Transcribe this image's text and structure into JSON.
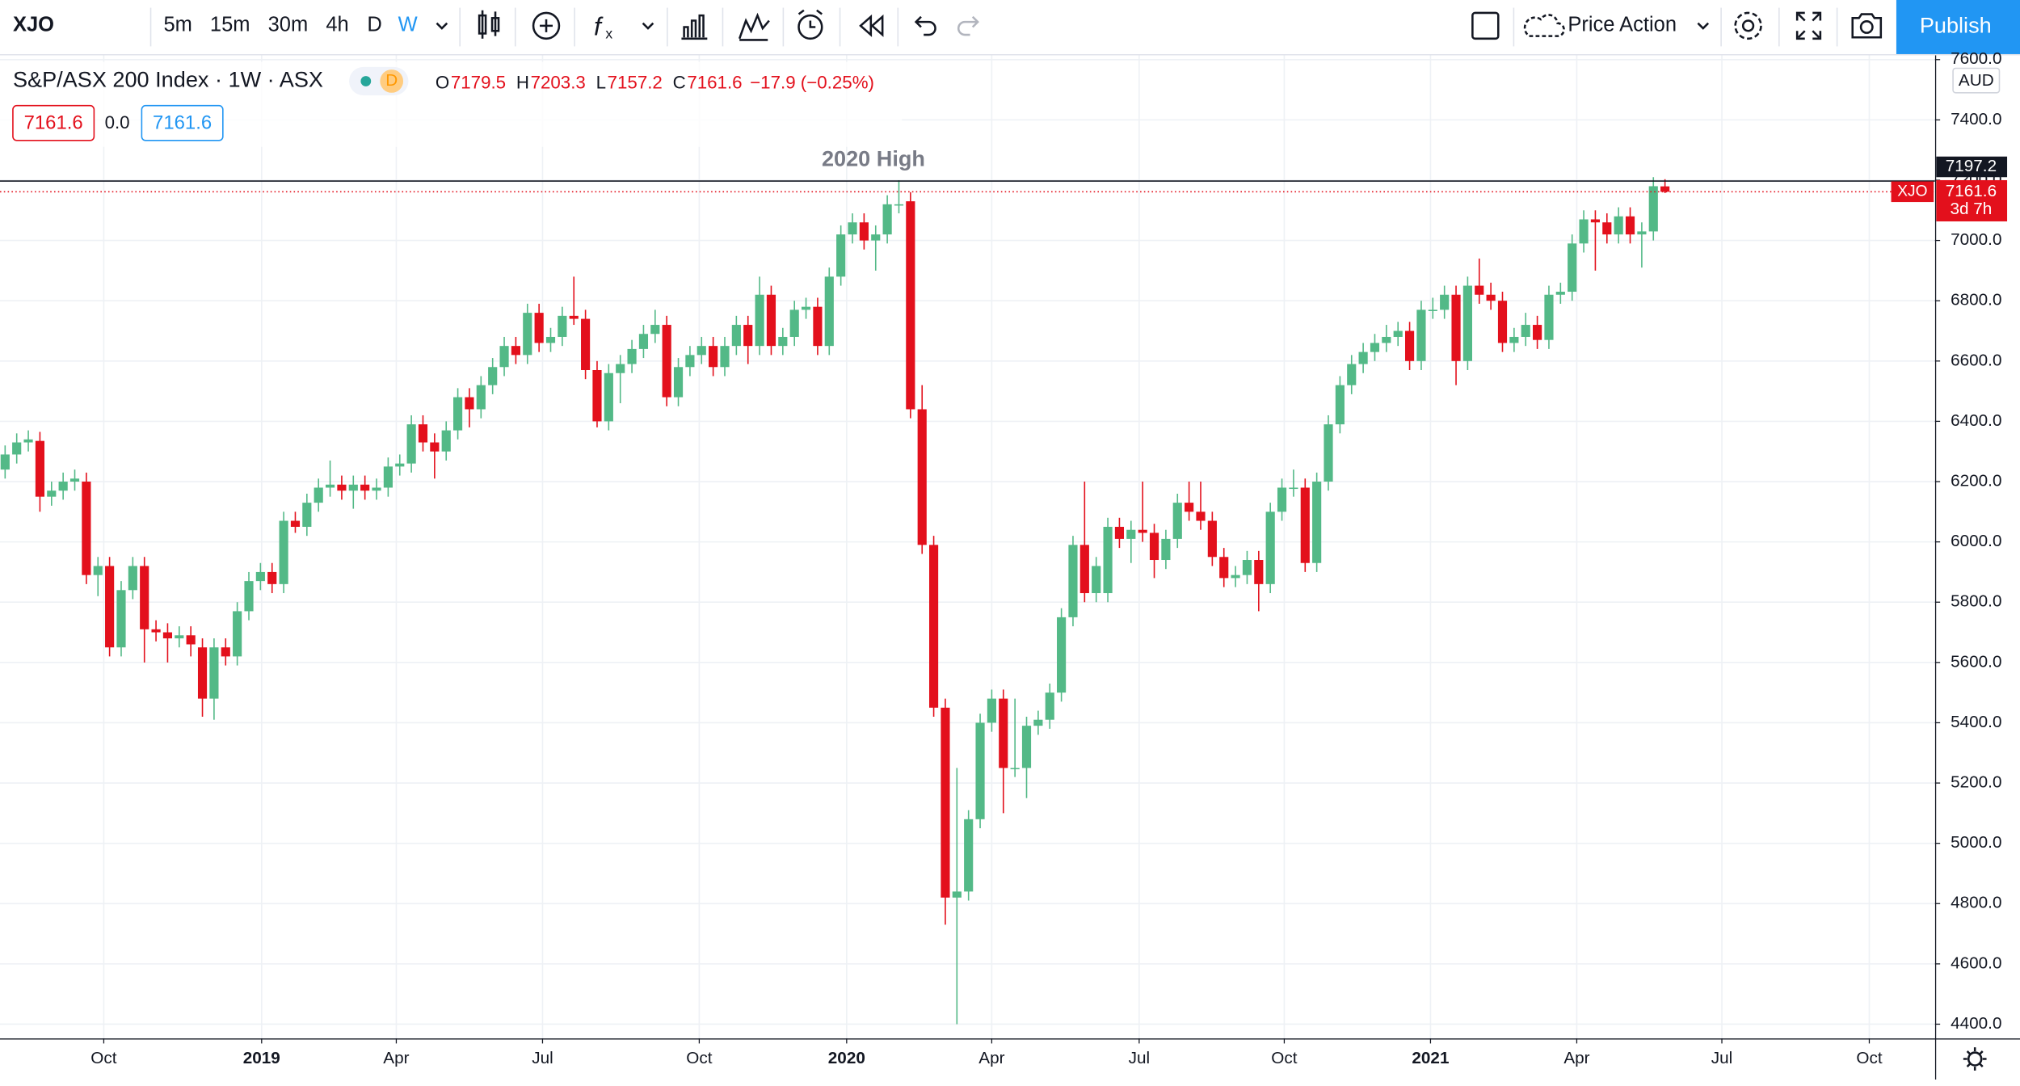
{
  "toolbar": {
    "symbol": "XJO",
    "intervals": [
      "5m",
      "15m",
      "30m",
      "4h",
      "D",
      "W"
    ],
    "active_interval": "W",
    "layout_name": "Price Action",
    "publish": "Publish"
  },
  "legend": {
    "title": "S&P/ASX 200 Index · 1W · ASX",
    "badge": "D",
    "ohlc_letters": [
      "O",
      "H",
      "L",
      "C"
    ],
    "change": "−17.9 (−0.25%)",
    "spread": "0.0"
  },
  "chart_data": {
    "type": "candlestick",
    "currency": "AUD",
    "countdown": "3d 7h",
    "up_color": "#53b987",
    "down_color": "#e3101c",
    "annotation": {
      "text": "2020 High",
      "value": 7197.2
    },
    "xlim": [
      -0.44,
      166.26
    ],
    "ylim": [
      4353,
      7614
    ],
    "yticks": [
      {
        "value": 4400,
        "label": "4400.0"
      },
      {
        "value": 4600,
        "label": "4600.0"
      },
      {
        "value": 4800,
        "label": "4800.0"
      },
      {
        "value": 5000,
        "label": "5000.0"
      },
      {
        "value": 5200,
        "label": "5200.0"
      },
      {
        "value": 5400,
        "label": "5400.0"
      },
      {
        "value": 5600,
        "label": "5600.0"
      },
      {
        "value": 5800,
        "label": "5800.0"
      },
      {
        "value": 6000,
        "label": "6000.0"
      },
      {
        "value": 6200,
        "label": "6200.0"
      },
      {
        "value": 6400,
        "label": "6400.0"
      },
      {
        "value": 6600,
        "label": "6600.0"
      },
      {
        "value": 6800,
        "label": "6800.0"
      },
      {
        "value": 7000,
        "label": "7000.0"
      },
      {
        "value": 7200,
        "label": "7200.0"
      },
      {
        "value": 7400,
        "label": "7400.0"
      },
      {
        "value": 7600,
        "label": "7600.0"
      }
    ],
    "xticks": [
      {
        "value": 8.5,
        "label": "Oct"
      },
      {
        "value": 22.1,
        "label": "2019"
      },
      {
        "value": 33.7,
        "label": "Apr"
      },
      {
        "value": 46.3,
        "label": "Jul"
      },
      {
        "value": 59.8,
        "label": "Oct"
      },
      {
        "value": 72.5,
        "label": "2020"
      },
      {
        "value": 85.0,
        "label": "Apr"
      },
      {
        "value": 97.7,
        "label": "Jul"
      },
      {
        "value": 110.2,
        "label": "Oct"
      },
      {
        "value": 122.8,
        "label": "2021"
      },
      {
        "value": 135.4,
        "label": "Apr"
      },
      {
        "value": 147.9,
        "label": "Jul"
      },
      {
        "value": 160.6,
        "label": "Oct"
      }
    ],
    "grid": true,
    "x": [
      0,
      1,
      2,
      3,
      4,
      5,
      6,
      7,
      8,
      9,
      10,
      11,
      12,
      13,
      14,
      15,
      16,
      17,
      18,
      19,
      20,
      21,
      22,
      23,
      24,
      25,
      26,
      27,
      28,
      29,
      30,
      31,
      32,
      33,
      34,
      35,
      36,
      37,
      38,
      39,
      40,
      41,
      42,
      43,
      44,
      45,
      46,
      47,
      48,
      49,
      50,
      51,
      52,
      53,
      54,
      55,
      56,
      57,
      58,
      59,
      60,
      61,
      62,
      63,
      64,
      65,
      66,
      67,
      68,
      69,
      70,
      71,
      72,
      73,
      74,
      75,
      76,
      77,
      78,
      79,
      80,
      81,
      82,
      83,
      84,
      85,
      86,
      87,
      88,
      89,
      90,
      91,
      92,
      93,
      94,
      95,
      96,
      97,
      98,
      99,
      100,
      101,
      102,
      103,
      104,
      105,
      106,
      107,
      108,
      109,
      110,
      111,
      112,
      113,
      114,
      115,
      116,
      117,
      118,
      119,
      120,
      121,
      122,
      123,
      124,
      125,
      126,
      127,
      128,
      129,
      130,
      131,
      132,
      133,
      134,
      135,
      136,
      137,
      138,
      139,
      140,
      141,
      142,
      143
    ],
    "candles": [
      [
        6240,
        6320,
        6210,
        6290
      ],
      [
        6290,
        6360,
        6260,
        6330
      ],
      [
        6330,
        6370,
        6300,
        6340
      ],
      [
        6335,
        6365,
        6100,
        6150
      ],
      [
        6150,
        6200,
        6120,
        6170
      ],
      [
        6170,
        6230,
        6140,
        6200
      ],
      [
        6200,
        6240,
        6170,
        6210
      ],
      [
        6200,
        6230,
        5860,
        5890
      ],
      [
        5890,
        5950,
        5820,
        5920
      ],
      [
        5920,
        5950,
        5620,
        5650
      ],
      [
        5650,
        5870,
        5620,
        5840
      ],
      [
        5840,
        5950,
        5810,
        5920
      ],
      [
        5920,
        5950,
        5600,
        5710
      ],
      [
        5710,
        5740,
        5670,
        5700
      ],
      [
        5700,
        5730,
        5600,
        5680
      ],
      [
        5680,
        5720,
        5650,
        5690
      ],
      [
        5690,
        5720,
        5620,
        5660
      ],
      [
        5650,
        5680,
        5420,
        5480
      ],
      [
        5480,
        5680,
        5410,
        5650
      ],
      [
        5650,
        5680,
        5590,
        5620
      ],
      [
        5620,
        5800,
        5590,
        5770
      ],
      [
        5770,
        5900,
        5740,
        5870
      ],
      [
        5870,
        5930,
        5840,
        5900
      ],
      [
        5900,
        5930,
        5830,
        5860
      ],
      [
        5860,
        6100,
        5830,
        6070
      ],
      [
        6070,
        6100,
        6030,
        6050
      ],
      [
        6050,
        6160,
        6020,
        6130
      ],
      [
        6130,
        6210,
        6100,
        6180
      ],
      [
        6180,
        6270,
        6150,
        6190
      ],
      [
        6190,
        6220,
        6140,
        6170
      ],
      [
        6170,
        6220,
        6110,
        6190
      ],
      [
        6190,
        6220,
        6140,
        6170
      ],
      [
        6170,
        6210,
        6140,
        6180
      ],
      [
        6180,
        6280,
        6150,
        6250
      ],
      [
        6250,
        6290,
        6220,
        6260
      ],
      [
        6260,
        6420,
        6230,
        6390
      ],
      [
        6390,
        6420,
        6300,
        6330
      ],
      [
        6330,
        6360,
        6210,
        6300
      ],
      [
        6300,
        6400,
        6270,
        6370
      ],
      [
        6370,
        6510,
        6340,
        6480
      ],
      [
        6480,
        6510,
        6380,
        6440
      ],
      [
        6440,
        6550,
        6410,
        6520
      ],
      [
        6520,
        6610,
        6490,
        6580
      ],
      [
        6580,
        6680,
        6550,
        6650
      ],
      [
        6650,
        6680,
        6590,
        6620
      ],
      [
        6620,
        6790,
        6590,
        6760
      ],
      [
        6760,
        6790,
        6630,
        6660
      ],
      [
        6660,
        6710,
        6630,
        6680
      ],
      [
        6680,
        6780,
        6650,
        6750
      ],
      [
        6750,
        6880,
        6720,
        6740
      ],
      [
        6740,
        6770,
        6540,
        6570
      ],
      [
        6570,
        6600,
        6380,
        6400
      ],
      [
        6400,
        6590,
        6370,
        6560
      ],
      [
        6560,
        6620,
        6460,
        6590
      ],
      [
        6590,
        6670,
        6560,
        6640
      ],
      [
        6640,
        6720,
        6610,
        6690
      ],
      [
        6690,
        6770,
        6660,
        6720
      ],
      [
        6720,
        6750,
        6450,
        6480
      ],
      [
        6480,
        6610,
        6450,
        6580
      ],
      [
        6580,
        6650,
        6550,
        6620
      ],
      [
        6620,
        6680,
        6590,
        6650
      ],
      [
        6650,
        6680,
        6550,
        6580
      ],
      [
        6580,
        6680,
        6550,
        6650
      ],
      [
        6650,
        6750,
        6620,
        6720
      ],
      [
        6720,
        6750,
        6590,
        6650
      ],
      [
        6650,
        6880,
        6620,
        6820
      ],
      [
        6820,
        6850,
        6620,
        6650
      ],
      [
        6650,
        6710,
        6620,
        6680
      ],
      [
        6680,
        6800,
        6650,
        6770
      ],
      [
        6770,
        6810,
        6740,
        6780
      ],
      [
        6780,
        6810,
        6620,
        6650
      ],
      [
        6650,
        6910,
        6620,
        6880
      ],
      [
        6880,
        7050,
        6850,
        7020
      ],
      [
        7020,
        7090,
        6990,
        7060
      ],
      [
        7060,
        7090,
        6970,
        7000
      ],
      [
        7000,
        7050,
        6900,
        7020
      ],
      [
        7020,
        7150,
        6990,
        7120
      ],
      [
        7120,
        7200,
        7090,
        7120
      ],
      [
        7130,
        7160,
        6410,
        6440
      ],
      [
        6440,
        6520,
        5960,
        5990
      ],
      [
        5990,
        6020,
        5420,
        5450
      ],
      [
        5450,
        5480,
        4730,
        4820
      ],
      [
        4820,
        5250,
        4400,
        4840
      ],
      [
        4840,
        5110,
        4810,
        5080
      ],
      [
        5080,
        5430,
        5050,
        5400
      ],
      [
        5400,
        5510,
        5370,
        5480
      ],
      [
        5480,
        5510,
        5100,
        5250
      ],
      [
        5250,
        5480,
        5220,
        5250
      ],
      [
        5250,
        5420,
        5150,
        5390
      ],
      [
        5390,
        5440,
        5360,
        5410
      ],
      [
        5410,
        5530,
        5380,
        5500
      ],
      [
        5500,
        5780,
        5470,
        5750
      ],
      [
        5750,
        6020,
        5720,
        5990
      ],
      [
        5990,
        6200,
        5800,
        5830
      ],
      [
        5830,
        5950,
        5800,
        5920
      ],
      [
        5830,
        6080,
        5800,
        6050
      ],
      [
        6050,
        6080,
        5980,
        6010
      ],
      [
        6010,
        6070,
        5930,
        6040
      ],
      [
        6040,
        6200,
        6000,
        6030
      ],
      [
        6030,
        6060,
        5880,
        5940
      ],
      [
        5940,
        6040,
        5910,
        6010
      ],
      [
        6010,
        6160,
        5980,
        6130
      ],
      [
        6130,
        6200,
        6070,
        6100
      ],
      [
        6100,
        6200,
        6040,
        6070
      ],
      [
        6070,
        6100,
        5920,
        5950
      ],
      [
        5950,
        5980,
        5850,
        5880
      ],
      [
        5880,
        5920,
        5850,
        5890
      ],
      [
        5890,
        5970,
        5860,
        5940
      ],
      [
        5940,
        5970,
        5770,
        5860
      ],
      [
        5860,
        6130,
        5830,
        6100
      ],
      [
        6100,
        6210,
        6070,
        6180
      ],
      [
        6180,
        6240,
        6150,
        6180
      ],
      [
        6180,
        6210,
        5900,
        5930
      ],
      [
        5930,
        6230,
        5900,
        6200
      ],
      [
        6200,
        6420,
        6170,
        6390
      ],
      [
        6390,
        6550,
        6360,
        6520
      ],
      [
        6520,
        6620,
        6490,
        6590
      ],
      [
        6590,
        6660,
        6560,
        6630
      ],
      [
        6630,
        6690,
        6600,
        6660
      ],
      [
        6660,
        6720,
        6630,
        6680
      ],
      [
        6680,
        6730,
        6650,
        6700
      ],
      [
        6700,
        6730,
        6570,
        6600
      ],
      [
        6600,
        6800,
        6570,
        6770
      ],
      [
        6770,
        6810,
        6740,
        6770
      ],
      [
        6770,
        6850,
        6740,
        6820
      ],
      [
        6820,
        6850,
        6520,
        6600
      ],
      [
        6600,
        6880,
        6570,
        6850
      ],
      [
        6850,
        6940,
        6790,
        6820
      ],
      [
        6820,
        6860,
        6770,
        6800
      ],
      [
        6800,
        6830,
        6630,
        6660
      ],
      [
        6660,
        6710,
        6630,
        6680
      ],
      [
        6680,
        6760,
        6650,
        6720
      ],
      [
        6720,
        6750,
        6640,
        6670
      ],
      [
        6670,
        6850,
        6640,
        6820
      ],
      [
        6820,
        6860,
        6790,
        6830
      ],
      [
        6830,
        7020,
        6800,
        6990
      ],
      [
        6990,
        7100,
        6960,
        7070
      ],
      [
        7070,
        7100,
        6900,
        7060
      ],
      [
        7060,
        7090,
        6990,
        7020
      ],
      [
        7020,
        7110,
        6990,
        7080
      ],
      [
        7080,
        7110,
        6990,
        7020
      ],
      [
        7020,
        7060,
        6910,
        7030
      ],
      [
        7030,
        7210,
        7000,
        7180
      ],
      [
        7179.5,
        7203.3,
        7157.2,
        7161.6
      ]
    ]
  }
}
